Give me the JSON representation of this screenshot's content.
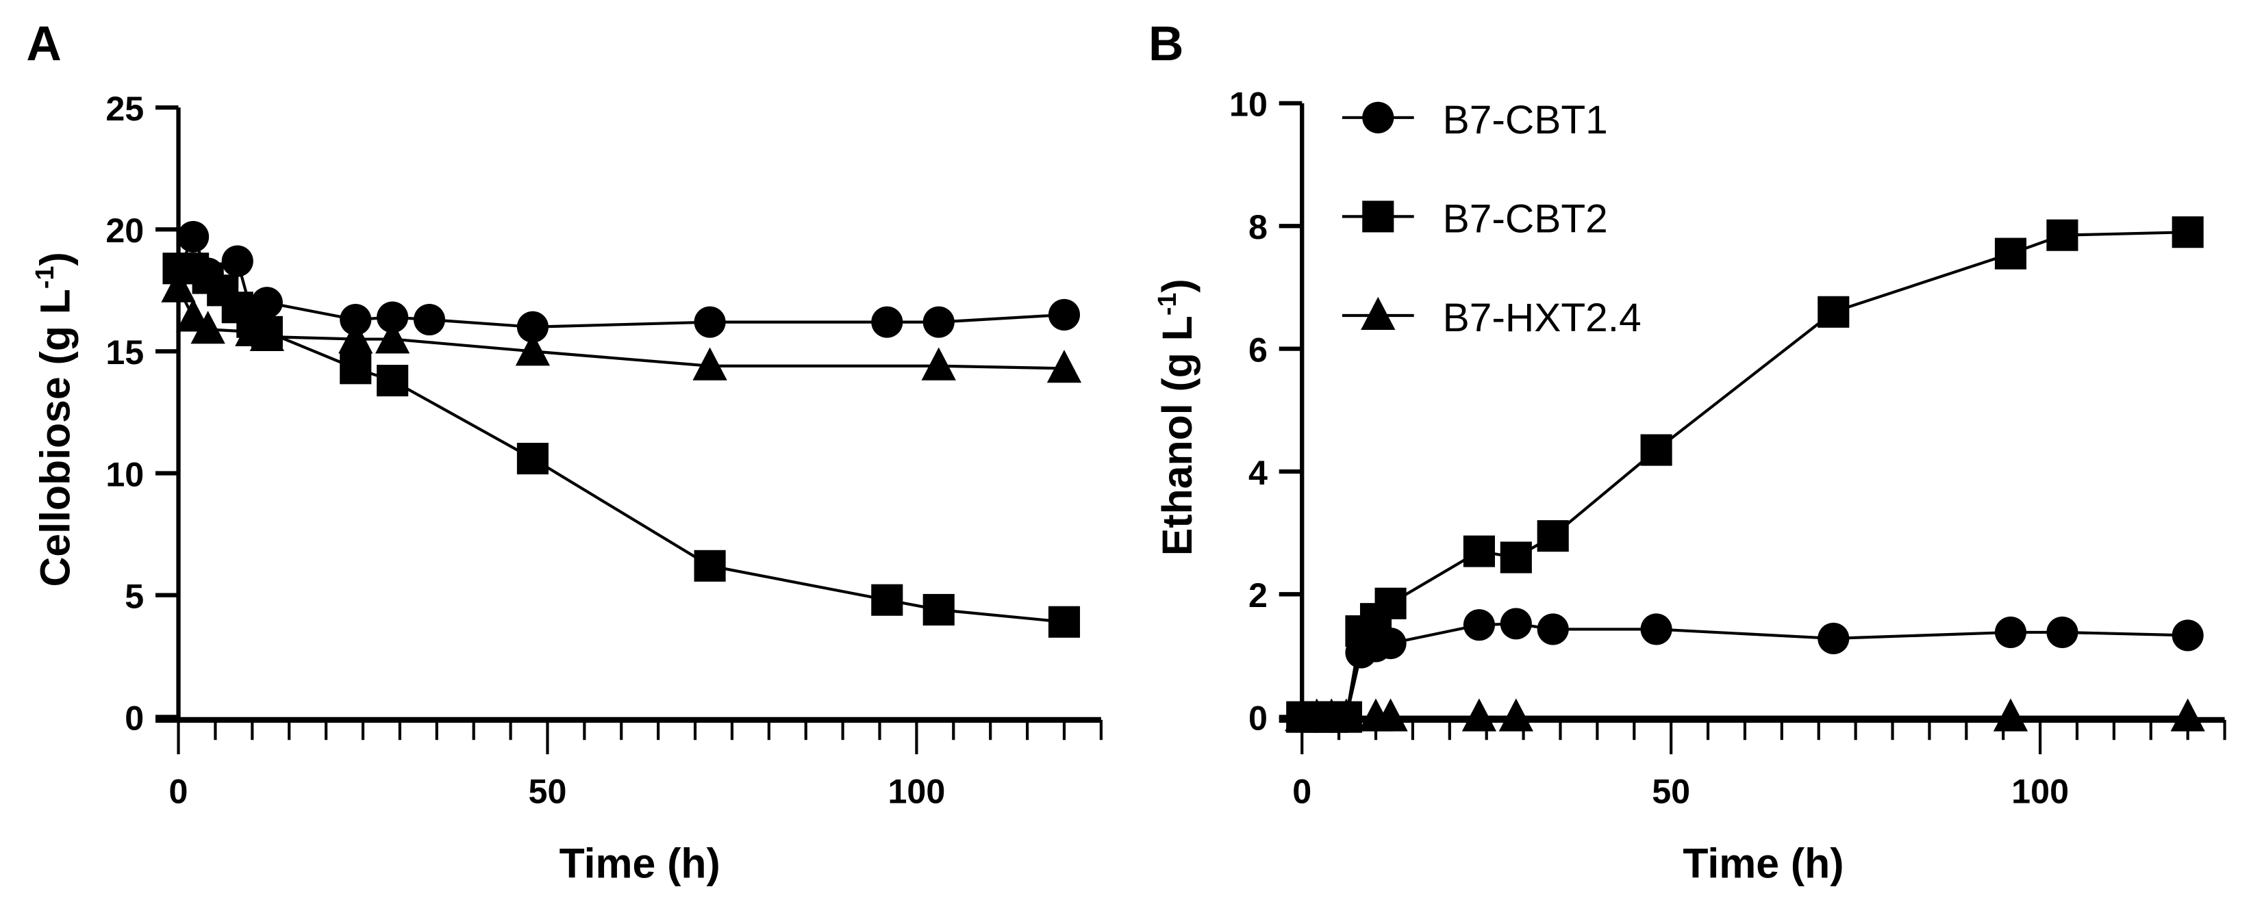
{
  "chart_data": [
    {
      "type": "line",
      "panel_label": "A",
      "xlabel": "Time (h)",
      "ylabel": "Cellobiose (g L",
      "ylabel_sup": "-1",
      "ylabel_close": ")",
      "xlim": [
        0,
        125
      ],
      "ylim": [
        0,
        25
      ],
      "xticks": [
        0,
        50,
        100
      ],
      "yticks": [
        0,
        5,
        10,
        15,
        20,
        25
      ],
      "grid": false,
      "series": [
        {
          "name": "B7-CBT1",
          "marker": "circle",
          "x": [
            0,
            2,
            4,
            8,
            10,
            12,
            24,
            29,
            34,
            48,
            72,
            96,
            103,
            120
          ],
          "y": [
            18.3,
            19.7,
            18.2,
            18.7,
            16.5,
            17.0,
            16.3,
            16.4,
            16.3,
            16.0,
            16.2,
            16.2,
            16.2,
            16.5
          ]
        },
        {
          "name": "B7-CBT2",
          "marker": "square",
          "x": [
            0,
            2,
            4,
            6,
            8,
            10,
            12,
            24,
            29,
            48,
            72,
            96,
            103,
            120
          ],
          "y": [
            18.4,
            18.4,
            18.0,
            17.5,
            16.8,
            16.2,
            15.8,
            14.3,
            13.8,
            10.6,
            6.2,
            4.8,
            4.4,
            3.9
          ]
        },
        {
          "name": "B7-HXT2.4",
          "marker": "triangle",
          "x": [
            0,
            2,
            4,
            10,
            12,
            24,
            29,
            48,
            72,
            103,
            120
          ],
          "y": [
            17.6,
            16.4,
            15.9,
            15.8,
            15.6,
            15.5,
            15.5,
            15.0,
            14.4,
            14.4,
            14.3
          ]
        }
      ]
    },
    {
      "type": "line",
      "panel_label": "B",
      "xlabel": "Time (h)",
      "ylabel": "Ethanol (g L",
      "ylabel_sup": "-1",
      "ylabel_close": ")",
      "xlim": [
        0,
        125
      ],
      "ylim": [
        0,
        10
      ],
      "xticks": [
        0,
        50,
        100
      ],
      "yticks": [
        0,
        2,
        4,
        6,
        8,
        10
      ],
      "grid": false,
      "legend_position": "top-left",
      "series": [
        {
          "name": "B7-CBT1",
          "marker": "circle",
          "x": [
            0,
            2,
            4,
            6,
            8,
            10,
            12,
            24,
            29,
            34,
            48,
            72,
            96,
            103,
            120
          ],
          "y": [
            0,
            0,
            0,
            0,
            1.05,
            1.15,
            1.2,
            1.5,
            1.52,
            1.43,
            1.43,
            1.28,
            1.38,
            1.38,
            1.33
          ]
        },
        {
          "name": "B7-CBT2",
          "marker": "square",
          "x": [
            0,
            2,
            4,
            6,
            8,
            10,
            12,
            24,
            29,
            34,
            48,
            72,
            96,
            103,
            120
          ],
          "y": [
            0,
            0,
            0,
            0,
            1.4,
            1.6,
            1.85,
            2.7,
            2.6,
            2.95,
            4.35,
            6.6,
            7.55,
            7.85,
            7.9
          ]
        },
        {
          "name": "B7-HXT2.4",
          "marker": "triangle",
          "x": [
            0,
            2,
            4,
            6,
            10,
            12,
            24,
            29,
            96,
            120
          ],
          "y": [
            0,
            0,
            0,
            0,
            0,
            0,
            0,
            0,
            0,
            0
          ]
        }
      ]
    }
  ],
  "colors": {
    "ink": "#000000",
    "background": "#ffffff"
  }
}
